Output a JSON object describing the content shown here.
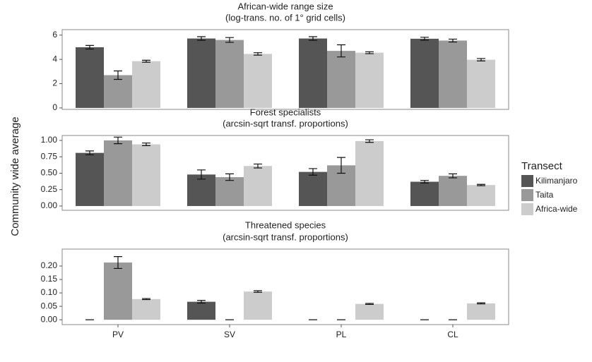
{
  "ylabel": "Community wide average",
  "chart_data": [
    {
      "type": "bar",
      "title": "African-wide range size",
      "subtitle": "(log-trans. no. of 1° grid cells)",
      "legend_title": "Transect",
      "ylim": [
        -0.12,
        6.45
      ],
      "yticks": [
        0,
        2,
        4,
        6
      ],
      "series": [
        {
          "name": "Kilimanjaro",
          "color": "#555555",
          "values": [
            5.0,
            5.72,
            5.72,
            5.7
          ],
          "errors": [
            0.15,
            0.15,
            0.15,
            0.12
          ]
        },
        {
          "name": "Taita",
          "color": "#999999",
          "values": [
            2.7,
            5.6,
            4.7,
            5.55
          ],
          "errors": [
            0.35,
            0.2,
            0.5,
            0.12
          ]
        },
        {
          "name": "Africa-wide",
          "color": "#cccccc",
          "values": [
            3.85,
            4.45,
            4.55,
            3.97
          ],
          "errors": [
            0.08,
            0.1,
            0.08,
            0.1
          ]
        }
      ]
    },
    {
      "type": "bar",
      "title": "Forest specialists",
      "subtitle": "(arcsin-sqrt transf. proportions)",
      "ylim": [
        -0.065,
        1.075
      ],
      "yticks": [
        {
          "value": 0,
          "label": "0.00"
        },
        {
          "value": 0.25,
          "label": "0.25"
        },
        {
          "value": 0.5,
          "label": "0.50"
        },
        {
          "value": 0.75,
          "label": "0.75"
        },
        {
          "value": 1,
          "label": "1.00"
        }
      ],
      "series": [
        {
          "color": "#555555",
          "values": [
            0.81,
            0.48,
            0.52,
            0.37
          ],
          "errors": [
            0.03,
            0.07,
            0.05,
            0.02
          ]
        },
        {
          "color": "#999999",
          "values": [
            1.0,
            0.44,
            0.62,
            0.46
          ],
          "errors": [
            0.05,
            0.05,
            0.12,
            0.03
          ]
        },
        {
          "color": "#cccccc",
          "values": [
            0.94,
            0.61,
            0.99,
            0.32
          ],
          "errors": [
            0.02,
            0.03,
            0.02,
            0.01
          ]
        }
      ]
    },
    {
      "type": "bar",
      "title": "Threatened species",
      "subtitle": "(arcsin-sqrt transf. proportions)",
      "categories": [
        "PV",
        "SV",
        "PL",
        "CL"
      ],
      "ylim": [
        -0.018,
        0.263
      ],
      "yticks": [
        {
          "value": 0,
          "label": "0.00"
        },
        {
          "value": 0.05,
          "label": "0.05"
        },
        {
          "value": 0.1,
          "label": "0.10"
        },
        {
          "value": 0.15,
          "label": "0.15"
        },
        {
          "value": 0.2,
          "label": "0.20"
        }
      ],
      "series": [
        {
          "color": "#555555",
          "values": [
            0,
            0.067,
            0,
            0
          ],
          "errors": [
            0,
            0.005,
            0,
            0
          ]
        },
        {
          "color": "#999999",
          "values": [
            0.213,
            0,
            0,
            0
          ],
          "errors": [
            0.022,
            0,
            0,
            0
          ]
        },
        {
          "color": "#cccccc",
          "values": [
            0.077,
            0.105,
            0.059,
            0.061
          ],
          "errors": [
            0.002,
            0.003,
            0.002,
            0.002
          ]
        }
      ]
    }
  ]
}
